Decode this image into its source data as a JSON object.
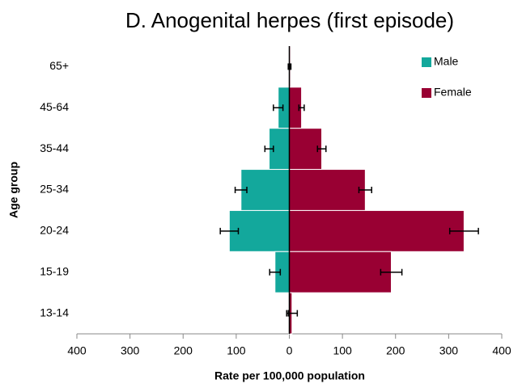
{
  "chart_data": {
    "type": "pyramid",
    "title": "D.  Anogenital herpes (first episode)",
    "x_label": "Rate per 100,000 population",
    "y_label": "Age group",
    "categories": [
      "65+",
      "45-64",
      "35-44",
      "25-34",
      "20-24",
      "15-19",
      "13-14"
    ],
    "series": [
      {
        "name": "Male",
        "color": "#13a89c",
        "side": "left",
        "values": [
          1,
          21,
          38,
          91,
          113,
          27,
          1
        ],
        "errors": [
          1,
          9,
          8,
          11,
          17,
          10,
          1
        ]
      },
      {
        "name": "Female",
        "color": "#990033",
        "side": "right",
        "values": [
          2,
          23,
          61,
          143,
          329,
          192,
          5
        ],
        "errors": [
          1,
          5,
          8,
          12,
          27,
          20,
          10
        ]
      }
    ],
    "xlim": [
      -400,
      400
    ],
    "xticks": [
      {
        "value": -400,
        "label": "400"
      },
      {
        "value": -300,
        "label": "300"
      },
      {
        "value": -200,
        "label": "200"
      },
      {
        "value": -100,
        "label": "100"
      },
      0,
      100,
      200,
      300,
      400
    ],
    "legend": "upper right"
  }
}
